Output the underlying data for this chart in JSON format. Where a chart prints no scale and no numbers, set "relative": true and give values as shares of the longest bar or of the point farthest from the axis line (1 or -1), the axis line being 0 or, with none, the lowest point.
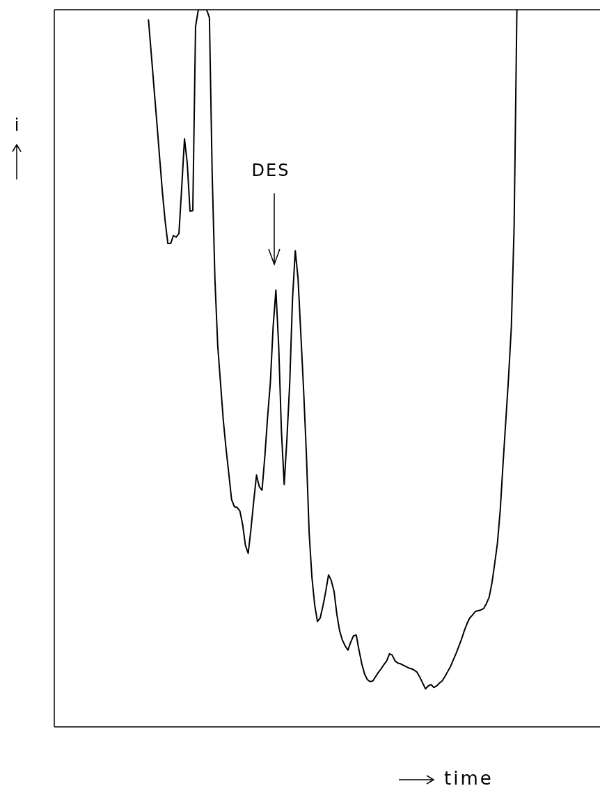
{
  "chart_data": {
    "type": "line",
    "relative": true,
    "xlabel": "time",
    "ylabel": "i",
    "annotations": [
      "DES"
    ],
    "categories": [
      null,
      null,
      null,
      null,
      null,
      null,
      null,
      null,
      null,
      null,
      null,
      null,
      null,
      null,
      null,
      null,
      null,
      null,
      null,
      null,
      null,
      null,
      null,
      null,
      null,
      null,
      null,
      null,
      null,
      null,
      null,
      null,
      null,
      null,
      null,
      null,
      null,
      null,
      null,
      null,
      null,
      null,
      null,
      null,
      null,
      null,
      null,
      null,
      null,
      null,
      null,
      null,
      null,
      null,
      null,
      null,
      null,
      null,
      null,
      null,
      null,
      null,
      null,
      null,
      null,
      null,
      null,
      null,
      null,
      null,
      null,
      null,
      null,
      null,
      null,
      null,
      null,
      null,
      null,
      null,
      null,
      null,
      null,
      null,
      null,
      null,
      null,
      null,
      null,
      null,
      null,
      null,
      null,
      null,
      null,
      null,
      null,
      null,
      null,
      null,
      null,
      null,
      null,
      null,
      null,
      null,
      null,
      null,
      null,
      null,
      null,
      null,
      null,
      null,
      null,
      null,
      null,
      null,
      null,
      null,
      null,
      null,
      null,
      null,
      null,
      null,
      null,
      null,
      null,
      null,
      null,
      null,
      null,
      null,
      null,
      null,
      null,
      null,
      null,
      null,
      null,
      null,
      null,
      null,
      null,
      null,
      null,
      null,
      null,
      null,
      null,
      null,
      null,
      null,
      null,
      null,
      null,
      null,
      null,
      null,
      null,
      null,
      null,
      null,
      null,
      null,
      null,
      null,
      null,
      null,
      null,
      null,
      null,
      null,
      null,
      null,
      null,
      null,
      null,
      null,
      null,
      null,
      null,
      null,
      null,
      null,
      null,
      null,
      null,
      null,
      null,
      null,
      null,
      null,
      null,
      null,
      null,
      null
    ],
    "series": [
      {
        "color": "#000000",
        "values": [
          null,
          null,
          null,
          null,
          null,
          null,
          null,
          null,
          null,
          null,
          null,
          null,
          null,
          null,
          null,
          null,
          null,
          null,
          null,
          null,
          null,
          null,
          null,
          null,
          null,
          null,
          null,
          null,
          null,
          null,
          null,
          null,
          null,
          null,
          0.986,
          0.939,
          0.891,
          0.844,
          0.795,
          0.747,
          0.706,
          0.674,
          0.674,
          0.685,
          0.683,
          0.688,
          0.752,
          0.82,
          0.786,
          0.719,
          0.72,
          0.977,
          1.0,
          1.0,
          1.0,
          1.0,
          0.989,
          0.771,
          0.623,
          0.532,
          0.48,
          0.428,
          0.388,
          0.353,
          0.317,
          0.307,
          0.306,
          0.301,
          0.282,
          0.253,
          0.242,
          0.276,
          0.315,
          0.351,
          0.335,
          0.33,
          0.377,
          0.432,
          0.48,
          0.558,
          0.609,
          0.532,
          0.412,
          0.338,
          0.403,
          0.48,
          0.597,
          0.664,
          0.625,
          0.548,
          0.47,
          0.381,
          0.271,
          0.209,
          0.17,
          0.147,
          0.152,
          0.169,
          0.189,
          0.212,
          0.204,
          0.189,
          0.157,
          0.134,
          0.121,
          0.113,
          0.107,
          0.118,
          0.127,
          0.128,
          0.107,
          0.088,
          0.074,
          0.066,
          0.063,
          0.064,
          0.07,
          0.076,
          0.081,
          0.087,
          0.092,
          0.102,
          0.1,
          0.092,
          0.089,
          0.088,
          0.086,
          0.084,
          0.082,
          0.081,
          0.079,
          0.076,
          0.069,
          0.061,
          0.053,
          0.057,
          0.059,
          0.055,
          0.057,
          0.061,
          0.064,
          0.07,
          0.077,
          0.084,
          0.093,
          0.102,
          0.112,
          0.122,
          0.134,
          0.144,
          0.152,
          0.156,
          0.161,
          0.162,
          0.163,
          0.165,
          0.172,
          0.181,
          0.201,
          0.228,
          0.257,
          0.303,
          0.367,
          0.427,
          0.488,
          0.558,
          0.698,
          1.0,
          null,
          null,
          null,
          null,
          null,
          null,
          null,
          null,
          null,
          null,
          null,
          null,
          null,
          null,
          null,
          null,
          null,
          null,
          null,
          null,
          null,
          null,
          null,
          null,
          null,
          null,
          null,
          null,
          null,
          null
        ]
      }
    ]
  }
}
